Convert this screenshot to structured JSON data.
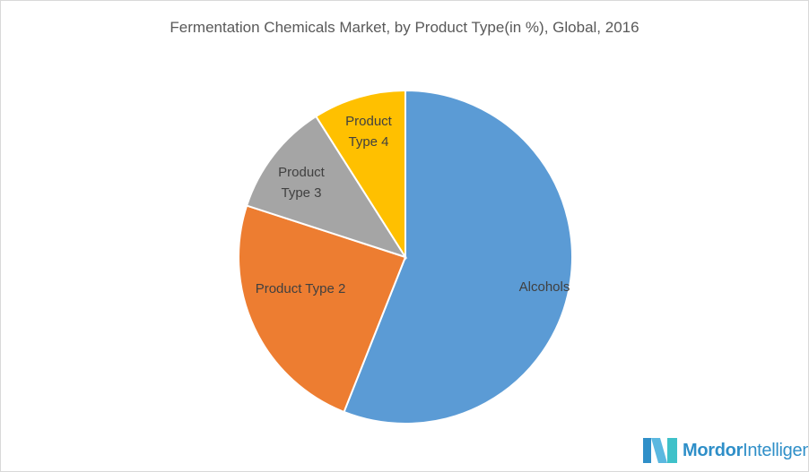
{
  "chart_data": {
    "type": "pie",
    "title": "Fermentation Chemicals Market, by  Product Type(in %), Global, 2016",
    "start_angle": "12 o'clock",
    "direction": "clockwise",
    "legend": "none",
    "slices": [
      {
        "label": "Alcohols",
        "value": 56,
        "color": "#5b9bd5"
      },
      {
        "label": "Product Type 2",
        "value": 24,
        "color": "#ed7d31"
      },
      {
        "label": "Product Type 3",
        "value": 11,
        "color": "#a5a5a5"
      },
      {
        "label": "Product Type 4",
        "value": 9,
        "color": "#ffc000"
      }
    ]
  },
  "logo": {
    "text_bold": "Mordor",
    "text_regular": "Intelligence"
  }
}
